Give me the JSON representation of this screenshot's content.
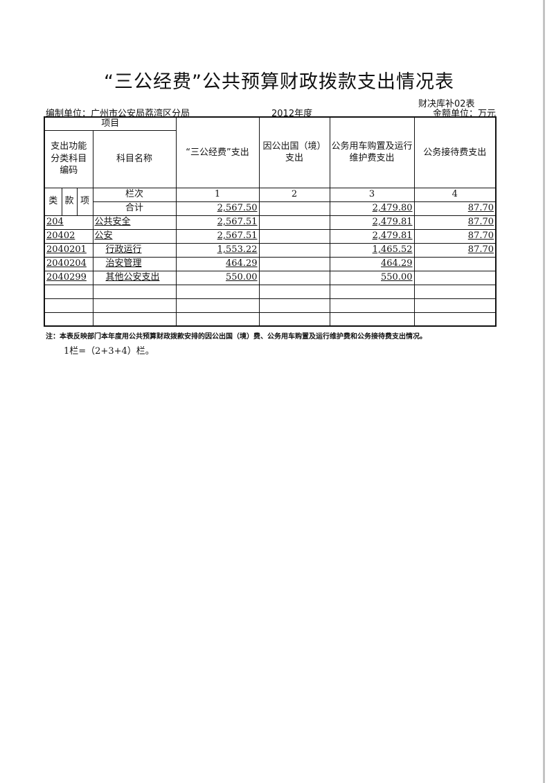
{
  "title": "“三公经费”公共预算财政拨款支出情况表",
  "form_no": "财决库补02表",
  "org": "编制单位：广州市公安局荔湾区分局",
  "year": "2012年度",
  "money_unit": "金额单位：万元",
  "table": {
    "header_item": "项目",
    "header_code": "支出功能分类科目编码",
    "header_name": "科目名称",
    "header_cols": [
      "“三公经费”支出",
      "因公出国（境）支出",
      "公务用车购置及运行维护费支出",
      "公务接待费支出"
    ],
    "code_parts": [
      "类",
      "款",
      "项"
    ],
    "col_index_label": "栏次",
    "col_index": [
      "1",
      "2",
      "3",
      "4"
    ],
    "total_label": "合计",
    "total": [
      "2,567.50",
      "",
      "2,479.80",
      "87.70"
    ],
    "rows": [
      {
        "code": "204",
        "name": "公共安全",
        "values": [
          "2,567.51",
          "",
          "2,479.81",
          "87.70"
        ]
      },
      {
        "code": "20402",
        "name": "公安",
        "values": [
          "2,567.51",
          "",
          "2,479.81",
          "87.70"
        ]
      },
      {
        "code": "2040201",
        "name": "行政运行",
        "values": [
          "1,553.22",
          "",
          "1,465.52",
          "87.70"
        ]
      },
      {
        "code": "2040204",
        "name": "治安管理",
        "values": [
          "464.29",
          "",
          "464.29",
          ""
        ]
      },
      {
        "code": "2040299",
        "name": "其他公安支出",
        "values": [
          "550.00",
          "",
          "550.00",
          ""
        ]
      },
      {
        "code": "",
        "name": "",
        "values": [
          "",
          "",
          "",
          ""
        ]
      },
      {
        "code": "",
        "name": "",
        "values": [
          "",
          "",
          "",
          ""
        ]
      },
      {
        "code": "",
        "name": "",
        "values": [
          "",
          "",
          "",
          ""
        ]
      }
    ]
  },
  "note": "注：本表反映部门本年度用公共预算财政拨款安排的因公出国（境）费、公务用车购置及运行维护费和公务接待费支出情况。",
  "note2": "1栏=（2+3+4）栏。"
}
